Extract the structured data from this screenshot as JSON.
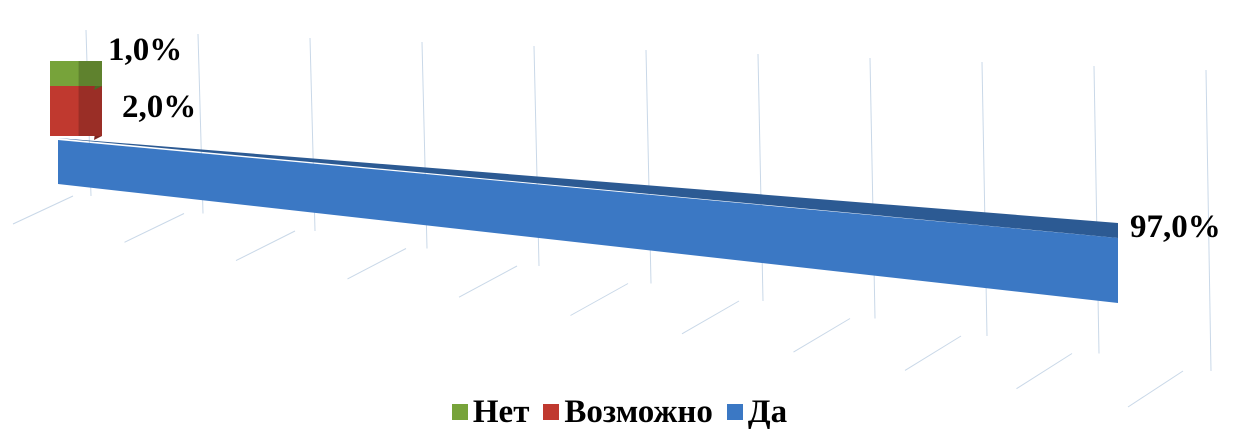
{
  "chart_data": {
    "type": "bar",
    "stacked": true,
    "orientation": "horizontal-3d",
    "categories": [
      ""
    ],
    "series": [
      {
        "name": "Нет",
        "values": [
          1.0
        ],
        "label": "1,0%",
        "color": "#77a33a"
      },
      {
        "name": "Возможно",
        "values": [
          2.0
        ],
        "label": "2,0%",
        "color": "#c0392f"
      },
      {
        "name": "Да",
        "values": [
          97.0
        ],
        "label": "97,0%",
        "color": "#3b78c4"
      }
    ],
    "value_unit": "%",
    "xlim": [
      0,
      100
    ],
    "grid": true,
    "legend": {
      "position": "bottom",
      "items": [
        {
          "label": "Нет",
          "color": "#77a33a"
        },
        {
          "label": "Возможно",
          "color": "#c0392f"
        },
        {
          "label": "Да",
          "color": "#3b78c4"
        }
      ]
    }
  }
}
